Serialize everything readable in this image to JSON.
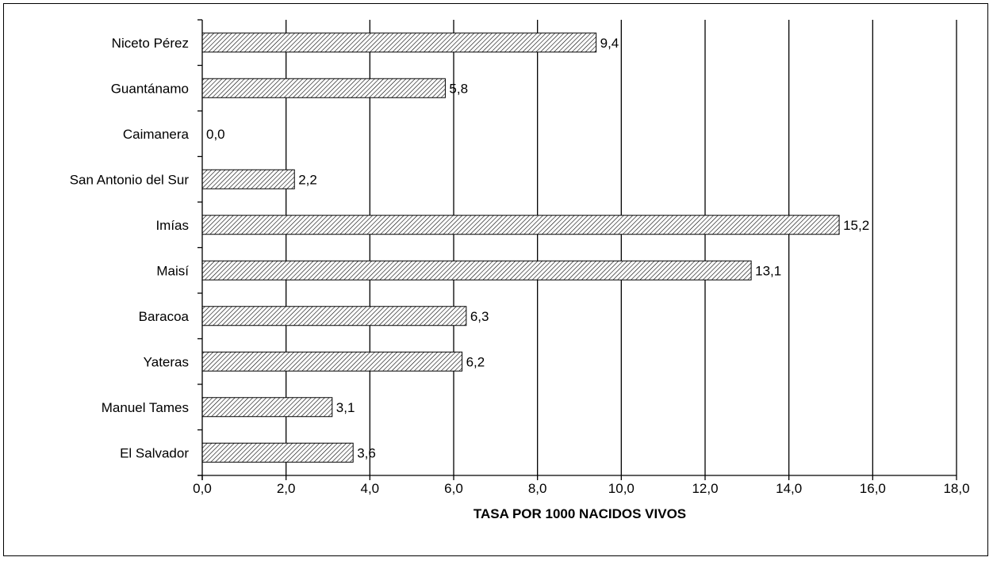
{
  "chart_data": {
    "type": "bar",
    "orientation": "horizontal",
    "categories": [
      "Niceto Pérez",
      "Guantánamo",
      "Caimanera",
      "San Antonio del Sur",
      "Imías",
      "Maisí",
      "Baracoa",
      "Yateras",
      "Manuel Tames",
      "El Salvador"
    ],
    "values": [
      9.4,
      5.8,
      0.0,
      2.2,
      15.2,
      13.1,
      6.3,
      6.2,
      3.1,
      3.6
    ],
    "value_labels": [
      "9,4",
      "5,8",
      "0,0",
      "2,2",
      "15,2",
      "13,1",
      "6,3",
      "6,2",
      "3,1",
      "3,6"
    ],
    "xlabel": "TASA POR 1000 NACIDOS VIVOS",
    "ylabel": "",
    "title": "",
    "xlim": [
      0,
      18
    ],
    "x_ticks": [
      0,
      2,
      4,
      6,
      8,
      10,
      12,
      14,
      16,
      18
    ],
    "x_tick_labels": [
      "0,0",
      "2,0",
      "4,0",
      "6,0",
      "8,0",
      "10,0",
      "12,0",
      "14,0",
      "16,0",
      "18,0"
    ],
    "grid": "vertical",
    "legend": "none",
    "bar_fill": "diagonal-hatch",
    "colors": {
      "bar_stroke": "#000000",
      "hatch": "#000000",
      "background": "#ffffff"
    }
  }
}
